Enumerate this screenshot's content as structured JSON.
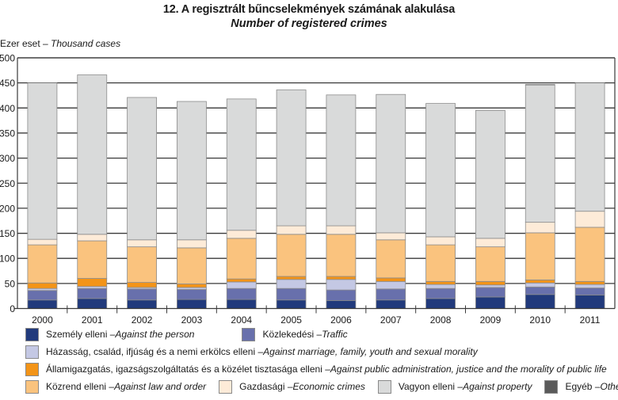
{
  "header": {
    "title": "12. A regisztrált bűncselekmények számának alakulása",
    "subtitle": "Number of registered crimes",
    "unit_hu": "Ezer eset – ",
    "unit_en": "Thousand cases"
  },
  "legend": [
    {
      "key": "person",
      "hu": "Személy elleni – ",
      "en": "Against the person",
      "color": "#213a7c"
    },
    {
      "key": "traffic",
      "hu": "Közlekedési – ",
      "en": "Traffic",
      "color": "#6870ac"
    },
    {
      "key": "marriage",
      "hu": "Házasság, család, ifjúság és a nemi erkölcs elleni – ",
      "en": "Against marriage, family, youth and sexual morality",
      "color": "#c4c8e4"
    },
    {
      "key": "admin",
      "hu": "Államigazgatás, igazságszolgáltatás és a közélet tisztasága elleni – ",
      "en": "Against public administration, justice and the morality of public life",
      "color": "#f39418"
    },
    {
      "key": "law",
      "hu": "Közrend elleni – ",
      "en": "Against law and order",
      "color": "#fac37e"
    },
    {
      "key": "economic",
      "hu": "Gazdasági – ",
      "en": "Economic crimes",
      "color": "#fdebd8"
    },
    {
      "key": "property",
      "hu": "Vagyon elleni – ",
      "en": "Against property",
      "color": "#d9dada"
    },
    {
      "key": "others",
      "hu": "Egyéb – ",
      "en": "Others",
      "color": "#5a5a5a"
    }
  ],
  "chart_data": {
    "type": "bar",
    "stacked": true,
    "title": "12. A regisztrált bűncselekmények számának alakulása",
    "subtitle": "Number of registered crimes",
    "xlabel": "",
    "ylabel": "Ezer eset – Thousand cases",
    "ylim": [
      0,
      500
    ],
    "yticks": [
      0,
      50,
      100,
      150,
      200,
      250,
      300,
      350,
      400,
      450,
      500
    ],
    "grid": true,
    "legend_position": "bottom",
    "categories": [
      "2000",
      "2001",
      "2002",
      "2003",
      "2004",
      "2005",
      "2006",
      "2007",
      "2008",
      "2009",
      "2010",
      "2011"
    ],
    "series": [
      {
        "name": "Személy elleni – Against the person",
        "key": "person",
        "values": [
          17,
          20,
          17,
          18,
          18,
          17,
          16,
          17,
          20,
          23,
          28,
          27
        ]
      },
      {
        "name": "Közlekedési – Traffic",
        "key": "traffic",
        "values": [
          19,
          20,
          22,
          20,
          22,
          23,
          21,
          22,
          20,
          19,
          15,
          14
        ]
      },
      {
        "name": "Házasság, család, ifjúság és a nemi erkölcs elleni – Against marriage, family, youth and sexual morality",
        "key": "marriage",
        "values": [
          4,
          4,
          3,
          4,
          13,
          18,
          21,
          15,
          8,
          5,
          8,
          7
        ]
      },
      {
        "name": "Államigazgatás, igazságszolgáltatás és a közélet tisztasága elleni – Against public administration, justice and the morality of public life",
        "key": "admin",
        "values": [
          11,
          16,
          10,
          7,
          6,
          6,
          6,
          7,
          6,
          7,
          6,
          6
        ]
      },
      {
        "name": "Közrend elleni – Against law and order",
        "key": "law",
        "values": [
          76,
          75,
          71,
          72,
          81,
          84,
          84,
          76,
          73,
          69,
          94,
          108
        ]
      },
      {
        "name": "Gazdasági – Economic crimes",
        "key": "economic",
        "values": [
          11,
          13,
          14,
          16,
          16,
          17,
          17,
          14,
          16,
          17,
          21,
          32
        ]
      },
      {
        "name": "Vagyon elleni – Against property",
        "key": "property",
        "values": [
          312,
          318,
          284,
          276,
          262,
          271,
          261,
          276,
          266,
          255,
          274,
          256
        ]
      },
      {
        "name": "Egyéb – Others",
        "key": "others",
        "values": [
          0,
          0,
          0,
          0,
          0,
          0,
          0,
          0,
          0,
          0,
          1,
          0
        ]
      }
    ]
  }
}
